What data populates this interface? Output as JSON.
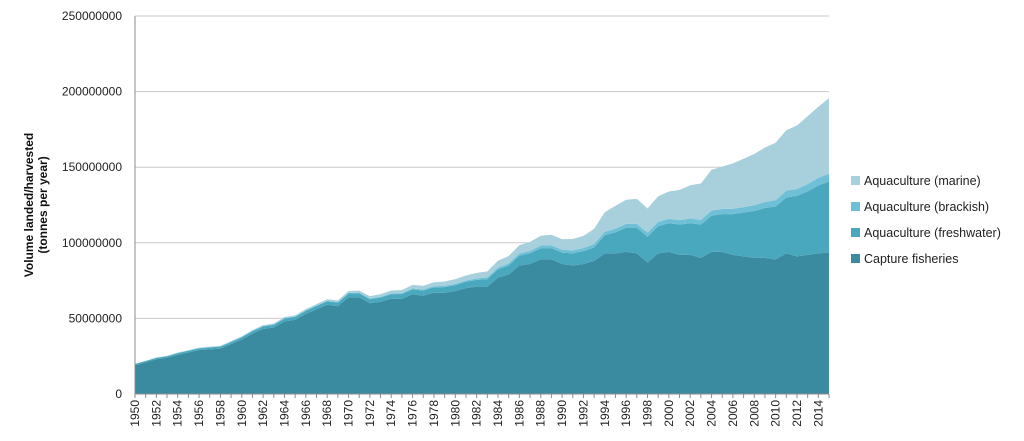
{
  "chart_data": {
    "type": "area",
    "stacked": true,
    "title": "",
    "xlabel": "",
    "ylabel_lines": [
      "Volume landed/harvested",
      "(tonnes per year)"
    ],
    "ylim": [
      0,
      250000000
    ],
    "y_ticks": [
      "0",
      "50000000",
      "100000000",
      "150000000",
      "200000000",
      "250000000"
    ],
    "grid": "horizontal",
    "legend_position": "right",
    "x": [
      1950,
      1951,
      1952,
      1953,
      1954,
      1955,
      1956,
      1957,
      1958,
      1959,
      1960,
      1961,
      1962,
      1963,
      1964,
      1965,
      1966,
      1967,
      1968,
      1969,
      1970,
      1971,
      1972,
      1973,
      1974,
      1975,
      1976,
      1977,
      1978,
      1979,
      1980,
      1981,
      1982,
      1983,
      1984,
      1985,
      1986,
      1987,
      1988,
      1989,
      1990,
      1991,
      1992,
      1993,
      1994,
      1995,
      1996,
      1997,
      1998,
      1999,
      2000,
      2001,
      2002,
      2003,
      2004,
      2005,
      2006,
      2007,
      2008,
      2009,
      2010,
      2011,
      2012,
      2013,
      2014,
      2015
    ],
    "x_tick_labels": [
      "1950",
      "1952",
      "1954",
      "1956",
      "1958",
      "1960",
      "1962",
      "1964",
      "1966",
      "1968",
      "1970",
      "1972",
      "1974",
      "1976",
      "1978",
      "1980",
      "1982",
      "1984",
      "1986",
      "1988",
      "1990",
      "1992",
      "1994",
      "1996",
      "1998",
      "2000",
      "2002",
      "2004",
      "2006",
      "2008",
      "2010",
      "2012",
      "2014"
    ],
    "series": [
      {
        "name": "Capture fisheries",
        "color": "#3a8aa0",
        "values": [
          19000000,
          21000000,
          23000000,
          24000000,
          26000000,
          27500000,
          29000000,
          29500000,
          30000000,
          33000000,
          36000000,
          40000000,
          43000000,
          44000000,
          48000000,
          49000000,
          53000000,
          56000000,
          59000000,
          58000000,
          64000000,
          64000000,
          60000000,
          61000000,
          63000000,
          63000000,
          66000000,
          65000000,
          67000000,
          67000000,
          68000000,
          70000000,
          71000000,
          71000000,
          77000000,
          79000000,
          85000000,
          86000000,
          89000000,
          89000000,
          86000000,
          85000000,
          86000000,
          88000000,
          93000000,
          93000000,
          94000000,
          93000000,
          87000000,
          93000000,
          94000000,
          92000000,
          92000000,
          90000000,
          94000000,
          94000000,
          92000000,
          91000000,
          90000000,
          90000000,
          89000000,
          93000000,
          91000000,
          92000000,
          93000000,
          93500000
        ]
      },
      {
        "name": "Aquaculture (freshwater)",
        "color": "#49a7be",
        "values": [
          800000,
          800000,
          900000,
          1000000,
          1000000,
          1100000,
          1200000,
          1300000,
          1300000,
          1400000,
          1500000,
          1600000,
          1700000,
          1800000,
          1900000,
          2000000,
          2100000,
          2200000,
          2300000,
          2400000,
          2500000,
          2600000,
          2700000,
          2800000,
          3000000,
          3100000,
          3200000,
          3400000,
          3500000,
          3700000,
          4000000,
          4200000,
          4500000,
          5000000,
          5500000,
          6000000,
          6500000,
          7000000,
          7500000,
          7500000,
          7500000,
          8000000,
          8500000,
          9000000,
          12000000,
          14000000,
          16000000,
          17000000,
          17000000,
          18000000,
          19000000,
          20000000,
          21000000,
          22000000,
          24000000,
          25000000,
          27000000,
          29000000,
          31000000,
          33000000,
          35000000,
          37000000,
          40000000,
          42000000,
          45000000,
          47000000
        ]
      },
      {
        "name": "Aquaculture (brackish)",
        "color": "#6fc0d7",
        "values": [
          100000,
          100000,
          100000,
          100000,
          150000,
          150000,
          150000,
          150000,
          200000,
          200000,
          200000,
          200000,
          250000,
          250000,
          300000,
          300000,
          300000,
          350000,
          350000,
          400000,
          400000,
          450000,
          500000,
          500000,
          550000,
          600000,
          650000,
          700000,
          750000,
          800000,
          850000,
          900000,
          1000000,
          1100000,
          1200000,
          1300000,
          1500000,
          1600000,
          1700000,
          1800000,
          1900000,
          2000000,
          2100000,
          2200000,
          2300000,
          2400000,
          2500000,
          2600000,
          2700000,
          2800000,
          2900000,
          3000000,
          3100000,
          3200000,
          3300000,
          3400000,
          3500000,
          3600000,
          3800000,
          4000000,
          4200000,
          4400000,
          4600000,
          4800000,
          5000000,
          5200000
        ]
      },
      {
        "name": "Aquaculture (marine)",
        "color": "#a8d0dc",
        "values": [
          100000,
          100000,
          200000,
          200000,
          300000,
          300000,
          300000,
          400000,
          400000,
          400000,
          500000,
          500000,
          600000,
          600000,
          700000,
          700000,
          800000,
          900000,
          1000000,
          1100000,
          1200000,
          1300000,
          1500000,
          1700000,
          1900000,
          2100000,
          2300000,
          2500000,
          2700000,
          2900000,
          3100000,
          3300000,
          3600000,
          4000000,
          4500000,
          5000000,
          5500000,
          6000000,
          6500000,
          7000000,
          7000000,
          7500000,
          8000000,
          10000000,
          13000000,
          15000000,
          16000000,
          16500000,
          16000000,
          17000000,
          18000000,
          20000000,
          22000000,
          24000000,
          27000000,
          28000000,
          30000000,
          32000000,
          34000000,
          36000000,
          38000000,
          40000000,
          42000000,
          45000000,
          47000000,
          50000000
        ]
      }
    ]
  },
  "legend_order": [
    "Aquaculture (marine)",
    "Aquaculture (brackish)",
    "Aquaculture (freshwater)",
    "Capture fisheries"
  ]
}
